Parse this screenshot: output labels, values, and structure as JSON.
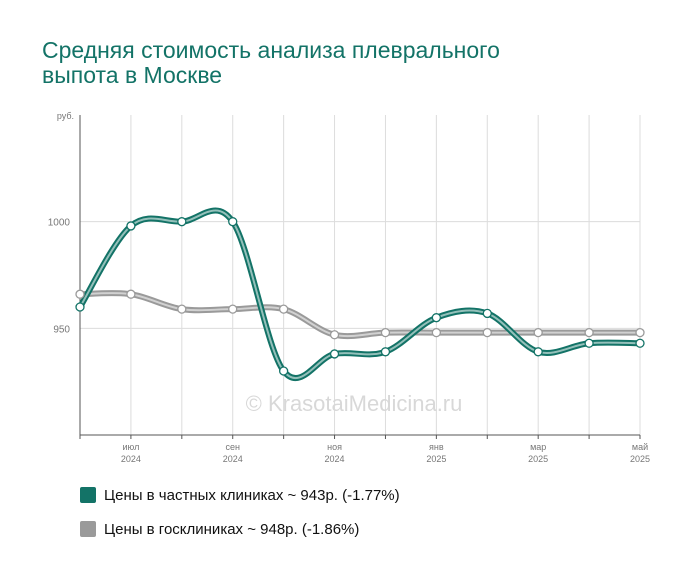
{
  "title": "Средняя стоимость анализа плеврального выпота в Москве",
  "watermark": "© KrasotaiMedicina.ru",
  "legend": [
    {
      "label": "Цены в частных клиниках ~ 943р. (-1.77%)",
      "color": "#137367"
    },
    {
      "label": "Цены в госклиниках ~ 948р. (-1.86%)",
      "color": "#9a9a9a"
    }
  ],
  "chart_data": {
    "type": "line",
    "y_unit": "руб.",
    "ylim": [
      900,
      1050
    ],
    "y_ticks": [
      950,
      1000
    ],
    "x": [
      "2024-06",
      "2024-07",
      "2024-08",
      "2024-09",
      "2024-10",
      "2024-11",
      "2024-12",
      "2025-01",
      "2025-02",
      "2025-03",
      "2025-04",
      "2025-05"
    ],
    "x_tick_labels": [
      {
        "x": "2024-07",
        "month": "июл",
        "year": "2024"
      },
      {
        "x": "2024-09",
        "month": "сен",
        "year": "2024"
      },
      {
        "x": "2024-11",
        "month": "ноя",
        "year": "2024"
      },
      {
        "x": "2025-01",
        "month": "янв",
        "year": "2025"
      },
      {
        "x": "2025-03",
        "month": "мар",
        "year": "2025"
      },
      {
        "x": "2025-05",
        "month": "май",
        "year": "2025"
      }
    ],
    "grid": true,
    "legend_position": "bottom",
    "series": [
      {
        "name": "Цены в частных клиниках",
        "color": "#137367",
        "values": [
          960,
          998,
          1000,
          1000,
          930,
          938,
          939,
          955,
          957,
          939,
          943,
          943
        ]
      },
      {
        "name": "Цены в госклиниках",
        "color": "#9a9a9a",
        "values": [
          966,
          966,
          959,
          959,
          959,
          947,
          948,
          948,
          948,
          948,
          948,
          948
        ]
      }
    ]
  }
}
